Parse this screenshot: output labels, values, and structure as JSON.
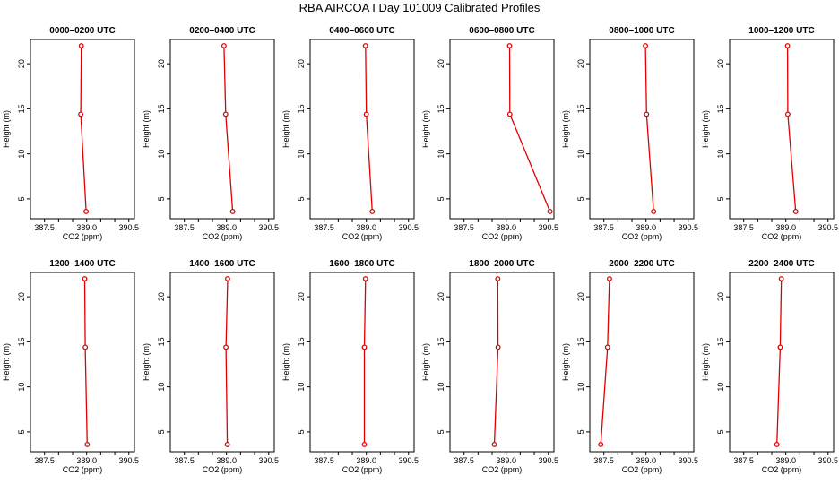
{
  "title": "RBA AIRCOA I  Day 101009  Calibrated Profiles",
  "axis_common": {
    "xlabel": "CO2 (ppm)",
    "ylabel": "Height (m)",
    "xlim": [
      387.0,
      390.7
    ],
    "ylim": [
      2.8,
      22.7
    ],
    "xticks": [
      387.5,
      389.0,
      390.5
    ],
    "xticks_unlabeled": [
      388.0,
      388.5,
      389.5,
      390.0
    ],
    "yticks": [
      5,
      10,
      15,
      20
    ],
    "line_color": "#e00000"
  },
  "chart_data": [
    {
      "type": "line",
      "title": "0000–0200 UTC",
      "xlabel": "CO2 (ppm)",
      "ylabel": "Height (m)",
      "heights": [
        22.0,
        14.4,
        3.6
      ],
      "values": [
        388.81,
        388.79,
        388.98
      ]
    },
    {
      "type": "line",
      "title": "0200–0400 UTC",
      "xlabel": "CO2 (ppm)",
      "ylabel": "Height (m)",
      "heights": [
        22.0,
        14.4,
        3.6
      ],
      "values": [
        388.91,
        388.97,
        389.22
      ]
    },
    {
      "type": "line",
      "title": "0400–0600 UTC",
      "xlabel": "CO2 (ppm)",
      "ylabel": "Height (m)",
      "heights": [
        22.0,
        14.4,
        3.6
      ],
      "values": [
        388.97,
        389.0,
        389.21
      ]
    },
    {
      "type": "line",
      "title": "0600–0800 UTC",
      "xlabel": "CO2 (ppm)",
      "ylabel": "Height (m)",
      "heights": [
        22.0,
        14.4,
        3.6
      ],
      "values": [
        389.12,
        389.13,
        390.56
      ]
    },
    {
      "type": "line",
      "title": "0800–1000 UTC",
      "xlabel": "CO2 (ppm)",
      "ylabel": "Height (m)",
      "heights": [
        22.0,
        14.4,
        3.6
      ],
      "values": [
        388.98,
        389.02,
        389.27
      ]
    },
    {
      "type": "line",
      "title": "1000–1200 UTC",
      "xlabel": "CO2 (ppm)",
      "ylabel": "Height (m)",
      "heights": [
        22.0,
        14.4,
        3.6
      ],
      "values": [
        389.06,
        389.07,
        389.35
      ]
    },
    {
      "type": "line",
      "title": "1200–1400 UTC",
      "xlabel": "CO2 (ppm)",
      "ylabel": "Height (m)",
      "heights": [
        22.0,
        14.4,
        3.6
      ],
      "values": [
        388.93,
        388.95,
        389.02
      ]
    },
    {
      "type": "line",
      "title": "1400–1600 UTC",
      "xlabel": "CO2 (ppm)",
      "ylabel": "Height (m)",
      "heights": [
        22.0,
        14.4,
        3.6
      ],
      "values": [
        389.04,
        388.98,
        389.03
      ]
    },
    {
      "type": "line",
      "title": "1600–1800 UTC",
      "xlabel": "CO2 (ppm)",
      "ylabel": "Height (m)",
      "heights": [
        22.0,
        14.4,
        3.6
      ],
      "values": [
        388.97,
        388.93,
        388.93
      ]
    },
    {
      "type": "line",
      "title": "1800–2000 UTC",
      "xlabel": "CO2 (ppm)",
      "ylabel": "Height (m)",
      "heights": [
        22.0,
        14.4,
        3.6
      ],
      "values": [
        388.7,
        388.71,
        388.58
      ]
    },
    {
      "type": "line",
      "title": "2000–2200 UTC",
      "xlabel": "CO2 (ppm)",
      "ylabel": "Height (m)",
      "heights": [
        22.0,
        14.4,
        3.6
      ],
      "values": [
        387.7,
        387.63,
        387.39
      ]
    },
    {
      "type": "line",
      "title": "2200–2400 UTC",
      "xlabel": "CO2 (ppm)",
      "ylabel": "Height (m)",
      "heights": [
        22.0,
        14.4,
        3.6
      ],
      "values": [
        388.84,
        388.8,
        388.68
      ]
    }
  ]
}
